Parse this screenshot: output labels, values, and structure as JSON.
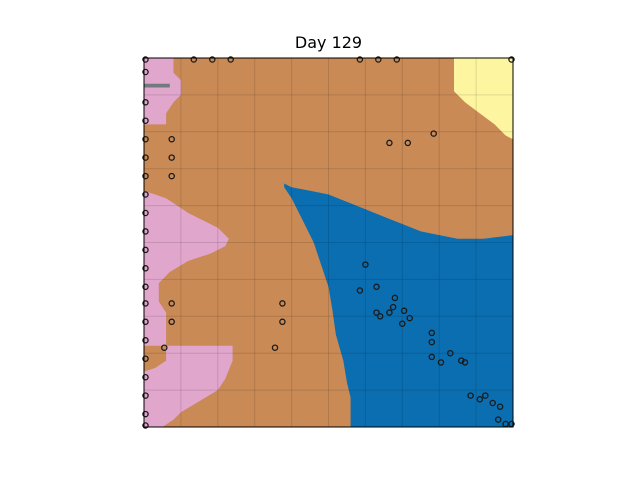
{
  "chart_data": {
    "type": "heatmap",
    "title": "Day 129",
    "xlabel": "",
    "ylabel": "",
    "xlim": [
      0,
      100
    ],
    "ylim": [
      0,
      100
    ],
    "grid": true,
    "colors": {
      "orange_region": "#c98a56",
      "blue_region": "#0a6eb0",
      "pink_region": "#e0a6cc",
      "yellow_region": "#fdf5a0",
      "gray_strip": "#707a80",
      "point_stroke": "#1a1a1a"
    },
    "regions": [
      {
        "color": "pink_region",
        "outline": [
          [
            0,
            100
          ],
          [
            8,
            100
          ],
          [
            8,
            96
          ],
          [
            10,
            94
          ],
          [
            10,
            90
          ],
          [
            8,
            88
          ],
          [
            6,
            85
          ],
          [
            6,
            82
          ],
          [
            0,
            82
          ],
          [
            0,
            64
          ],
          [
            6,
            62
          ],
          [
            12,
            58
          ],
          [
            20,
            54
          ],
          [
            23,
            51
          ],
          [
            22,
            49
          ],
          [
            18,
            47
          ],
          [
            12,
            45
          ],
          [
            7,
            42
          ],
          [
            4,
            39
          ],
          [
            4,
            34
          ],
          [
            6,
            31
          ],
          [
            6,
            18
          ],
          [
            3,
            16
          ],
          [
            0,
            15
          ],
          [
            0,
            0
          ],
          [
            5,
            0
          ],
          [
            8,
            2
          ],
          [
            10,
            4
          ],
          [
            15,
            7
          ],
          [
            20,
            10
          ],
          [
            22,
            13
          ],
          [
            24,
            18
          ],
          [
            24,
            22
          ],
          [
            0,
            22
          ]
        ]
      },
      {
        "color": "yellow_region",
        "outline": [
          [
            84,
            100
          ],
          [
            100,
            100
          ],
          [
            100,
            78
          ],
          [
            98,
            79
          ],
          [
            95,
            82
          ],
          [
            91,
            85
          ],
          [
            87,
            88
          ],
          [
            84,
            91
          ]
        ]
      },
      {
        "color": "blue_region",
        "outline": [
          [
            38,
            66
          ],
          [
            40,
            65
          ],
          [
            45,
            64
          ],
          [
            50,
            63
          ],
          [
            55,
            61
          ],
          [
            60,
            59
          ],
          [
            65,
            57
          ],
          [
            70,
            55
          ],
          [
            75,
            53
          ],
          [
            80,
            52
          ],
          [
            85,
            51
          ],
          [
            92,
            51
          ],
          [
            100,
            52
          ],
          [
            100,
            0
          ],
          [
            56,
            0
          ],
          [
            56,
            8
          ],
          [
            55,
            12
          ],
          [
            54,
            18
          ],
          [
            52,
            25
          ],
          [
            51,
            32
          ],
          [
            50,
            38
          ],
          [
            48,
            44
          ],
          [
            46,
            50
          ],
          [
            43,
            56
          ],
          [
            40,
            62
          ],
          [
            38,
            65
          ]
        ]
      },
      {
        "color": "gray_strip",
        "outline": [
          [
            0,
            92
          ],
          [
            7,
            92
          ],
          [
            7,
            93
          ],
          [
            0,
            93
          ]
        ]
      }
    ],
    "points": [
      {
        "x": 0.4,
        "y": 99.6
      },
      {
        "x": 13.5,
        "y": 99.6
      },
      {
        "x": 18.5,
        "y": 99.6
      },
      {
        "x": 23.5,
        "y": 99.6
      },
      {
        "x": 58.5,
        "y": 99.6
      },
      {
        "x": 63.5,
        "y": 99.6
      },
      {
        "x": 68.5,
        "y": 99.6
      },
      {
        "x": 99.6,
        "y": 99.6
      },
      {
        "x": 0.4,
        "y": 96.2
      },
      {
        "x": 0.4,
        "y": 88
      },
      {
        "x": 0.4,
        "y": 83
      },
      {
        "x": 0.4,
        "y": 78
      },
      {
        "x": 7.5,
        "y": 78
      },
      {
        "x": 0.4,
        "y": 73
      },
      {
        "x": 7.5,
        "y": 73
      },
      {
        "x": 0.4,
        "y": 68
      },
      {
        "x": 7.5,
        "y": 68
      },
      {
        "x": 0.4,
        "y": 63
      },
      {
        "x": 0.4,
        "y": 58
      },
      {
        "x": 0.4,
        "y": 53
      },
      {
        "x": 0.4,
        "y": 48
      },
      {
        "x": 0.4,
        "y": 43
      },
      {
        "x": 0.4,
        "y": 38
      },
      {
        "x": 7.5,
        "y": 33.5
      },
      {
        "x": 0.4,
        "y": 33.5
      },
      {
        "x": 0.4,
        "y": 28.5
      },
      {
        "x": 7.5,
        "y": 28.5
      },
      {
        "x": 0.4,
        "y": 23.5
      },
      {
        "x": 5.5,
        "y": 21.5
      },
      {
        "x": 0.4,
        "y": 18.5
      },
      {
        "x": 0.4,
        "y": 13.5
      },
      {
        "x": 0.4,
        "y": 8.5
      },
      {
        "x": 0.4,
        "y": 3.5
      },
      {
        "x": 0.4,
        "y": 0.4
      },
      {
        "x": 78.5,
        "y": 79.5
      },
      {
        "x": 66.5,
        "y": 77
      },
      {
        "x": 71.5,
        "y": 77
      },
      {
        "x": 37.5,
        "y": 33.5
      },
      {
        "x": 37.5,
        "y": 28.5
      },
      {
        "x": 35.5,
        "y": 21.5
      },
      {
        "x": 60,
        "y": 44
      },
      {
        "x": 63,
        "y": 38
      },
      {
        "x": 58.5,
        "y": 37
      },
      {
        "x": 68,
        "y": 35
      },
      {
        "x": 67.5,
        "y": 32.5
      },
      {
        "x": 63,
        "y": 31
      },
      {
        "x": 64,
        "y": 30
      },
      {
        "x": 66.5,
        "y": 31
      },
      {
        "x": 70.5,
        "y": 31.5
      },
      {
        "x": 72,
        "y": 29.5
      },
      {
        "x": 70,
        "y": 28
      },
      {
        "x": 78,
        "y": 25.5
      },
      {
        "x": 78,
        "y": 23
      },
      {
        "x": 78,
        "y": 19
      },
      {
        "x": 80.5,
        "y": 17.5
      },
      {
        "x": 83,
        "y": 20
      },
      {
        "x": 86,
        "y": 18
      },
      {
        "x": 87,
        "y": 17.5
      },
      {
        "x": 88.5,
        "y": 8.5
      },
      {
        "x": 91,
        "y": 7.5
      },
      {
        "x": 92.5,
        "y": 8.5
      },
      {
        "x": 94.5,
        "y": 6.5
      },
      {
        "x": 96.5,
        "y": 5.5
      },
      {
        "x": 96,
        "y": 2
      },
      {
        "x": 98,
        "y": 0.8
      },
      {
        "x": 99.6,
        "y": 0.8
      }
    ]
  }
}
